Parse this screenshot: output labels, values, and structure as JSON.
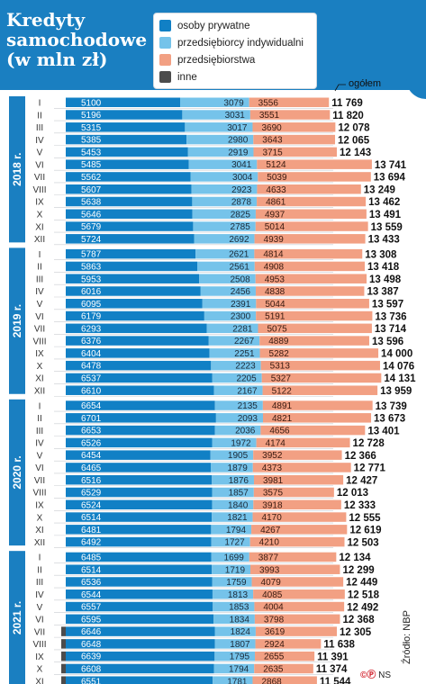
{
  "header": {
    "title_line1": "Kredyty",
    "title_line2": "samochodowe",
    "title_line3": "(w mln zł)"
  },
  "legend": [
    {
      "label": "osoby prywatne",
      "color": "#1180c5"
    },
    {
      "label": "przedsiębiorcy indywidualni",
      "color": "#75c3ea"
    },
    {
      "label": "przedsiębiorstwa",
      "color": "#f2a083"
    },
    {
      "label": "inne",
      "color": "#4c4c4c"
    }
  ],
  "total_caption": "ogółem",
  "source": "Źródło: NBP",
  "signature": "NS",
  "chart_data": {
    "type": "bar",
    "orientation": "horizontal",
    "stacked": true,
    "groups": [
      {
        "label": "2018 r.",
        "months": [
          "I",
          "II",
          "III",
          "IV",
          "V",
          "VI",
          "VII",
          "VIII",
          "IX",
          "X",
          "XI",
          "XII"
        ],
        "osoby_prywatne": [
          5100,
          5196,
          5315,
          5385,
          5453,
          5485,
          5562,
          5607,
          5638,
          5646,
          5679,
          5724
        ],
        "przedsiebiorcy_indywidualni": [
          3079,
          3031,
          3017,
          2980,
          2919,
          3041,
          3004,
          2923,
          2878,
          2825,
          2785,
          2692
        ],
        "przedsiebiorstwa": [
          3556,
          3551,
          3690,
          3643,
          3715,
          5124,
          5039,
          4633,
          4861,
          4937,
          5014,
          4939
        ],
        "ogolem": [
          "11 769",
          "11 820",
          "12 078",
          "12 065",
          "12 143",
          "13 741",
          "13 694",
          "13 249",
          "13 462",
          "13 491",
          "13 559",
          "13 433"
        ]
      },
      {
        "label": "2019 r.",
        "months": [
          "I",
          "II",
          "III",
          "IV",
          "V",
          "VI",
          "VII",
          "VIII",
          "IX",
          "X",
          "XI",
          "XII"
        ],
        "osoby_prywatne": [
          5787,
          5863,
          5953,
          6016,
          6095,
          6179,
          6293,
          6376,
          6404,
          6478,
          6537,
          6610
        ],
        "przedsiebiorcy_indywidualni": [
          2621,
          2561,
          2508,
          2456,
          2391,
          2300,
          2281,
          2267,
          2251,
          2223,
          2205,
          2167
        ],
        "przedsiebiorstwa": [
          4814,
          4908,
          4953,
          4838,
          5044,
          5191,
          5075,
          4889,
          5282,
          5313,
          5327,
          5122
        ],
        "ogolem": [
          "13 308",
          "13 418",
          "13 498",
          "13 387",
          "13 597",
          "13 736",
          "13 714",
          "13 596",
          "14 000",
          "14 076",
          "14 131",
          "13 959"
        ]
      },
      {
        "label": "2020 r.",
        "months": [
          "I",
          "II",
          "III",
          "IV",
          "V",
          "VI",
          "VII",
          "VIII",
          "IX",
          "X",
          "XI",
          "XII"
        ],
        "osoby_prywatne": [
          6654,
          6701,
          6653,
          6526,
          6454,
          6465,
          6516,
          6529,
          6524,
          6514,
          6481,
          6492
        ],
        "przedsiebiorcy_indywidualni": [
          2135,
          2093,
          2036,
          1972,
          1905,
          1879,
          1876,
          1857,
          1840,
          1821,
          1794,
          1727
        ],
        "przedsiebiorstwa": [
          4891,
          4821,
          4656,
          4174,
          3952,
          4373,
          3981,
          3575,
          3918,
          4170,
          4267,
          4210
        ],
        "ogolem": [
          "13 739",
          "13 673",
          "13 401",
          "12 728",
          "12 366",
          "12 771",
          "12 427",
          "12 013",
          "12 333",
          "12 555",
          "12 619",
          "12 503"
        ]
      },
      {
        "label": "2021 r.",
        "months": [
          "I",
          "II",
          "III",
          "IV",
          "V",
          "VI",
          "VII",
          "VIII",
          "IX",
          "X",
          "XI"
        ],
        "osoby_prywatne": [
          6485,
          6514,
          6536,
          6544,
          6557,
          6595,
          6646,
          6648,
          6639,
          6608,
          6551
        ],
        "przedsiebiorcy_indywidualni": [
          1699,
          1719,
          1759,
          1813,
          1853,
          1834,
          1824,
          1807,
          1795,
          1794,
          1781
        ],
        "przedsiebiorstwa": [
          3877,
          3993,
          4079,
          4085,
          4004,
          3798,
          3619,
          2924,
          2655,
          2635,
          2868
        ],
        "inne": [
          0,
          0,
          0,
          0,
          0,
          0,
          190,
          210,
          230,
          240,
          260
        ],
        "ogolem": [
          "12 134",
          "12 299",
          "12 449",
          "12 518",
          "12 492",
          "12 368",
          "12 305",
          "11 638",
          "11 391",
          "11 374",
          "11 544"
        ]
      }
    ]
  }
}
